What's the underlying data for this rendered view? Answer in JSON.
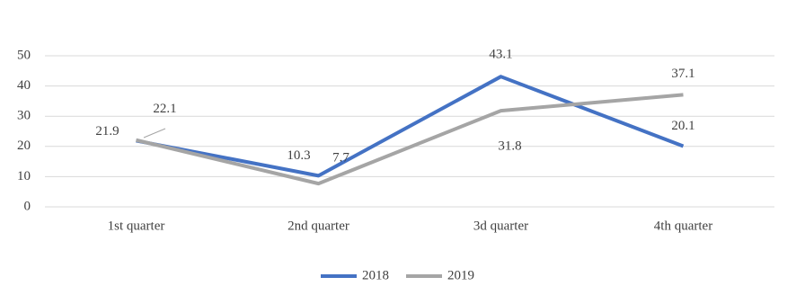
{
  "chart_data": {
    "type": "line",
    "categories": [
      "1st quarter",
      "2nd quarter",
      "3d quarter",
      "4th quarter"
    ],
    "series": [
      {
        "name": "2018",
        "color": "#4472c4",
        "values": [
          21.9,
          10.3,
          43.1,
          20.1
        ]
      },
      {
        "name": "2019",
        "color": "#a5a5a5",
        "values": [
          22.1,
          7.7,
          31.8,
          37.1
        ]
      }
    ],
    "ylim": [
      0,
      50
    ],
    "yticks": [
      0,
      10,
      20,
      30,
      40,
      50
    ],
    "grid": true,
    "legend": "bottom"
  }
}
